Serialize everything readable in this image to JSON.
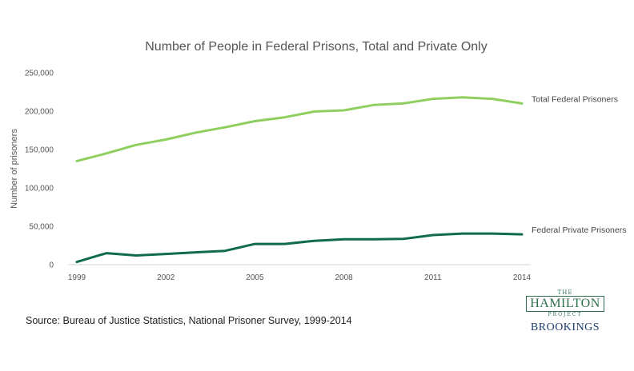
{
  "chart_data": {
    "type": "line",
    "title": "Number of People in Federal Prisons, Total and Private Only",
    "ylabel": "Number of prisoners",
    "xlabel": "",
    "ylim": [
      0,
      250000
    ],
    "yticks": [
      "0",
      "50,000",
      "100,000",
      "150,000",
      "200,000",
      "250,000"
    ],
    "ytick_values": [
      0,
      50000,
      100000,
      150000,
      200000,
      250000
    ],
    "xticks": [
      "1999",
      "2002",
      "2005",
      "2008",
      "2011",
      "2014"
    ],
    "xtick_values": [
      1999,
      2002,
      2005,
      2008,
      2011,
      2014
    ],
    "grid": false,
    "x": [
      1999,
      2000,
      2001,
      2002,
      2003,
      2004,
      2005,
      2006,
      2007,
      2008,
      2009,
      2010,
      2011,
      2012,
      2013,
      2014
    ],
    "series": [
      {
        "name": "Total Federal Prisoners",
        "color": "#8fcf5f",
        "values": [
          135000,
          145000,
          156000,
          163000,
          172000,
          179000,
          187000,
          192000,
          199500,
          201000,
          208000,
          210000,
          216000,
          218000,
          216000,
          210000
        ]
      },
      {
        "name": "Federal Private Prisoners",
        "color": "#0f6b4b",
        "values": [
          3500,
          15000,
          12000,
          14000,
          16000,
          18000,
          27000,
          27000,
          31000,
          33000,
          33000,
          33500,
          38500,
          40500,
          40500,
          39500
        ]
      }
    ]
  },
  "source": "Source: Bureau of Justice Statistics, National Prisoner Survey, 1999-2014",
  "logo": {
    "the": "THE",
    "hamilton": "HAMILTON",
    "project": "PROJECT",
    "brookings": "BROOKINGS"
  }
}
